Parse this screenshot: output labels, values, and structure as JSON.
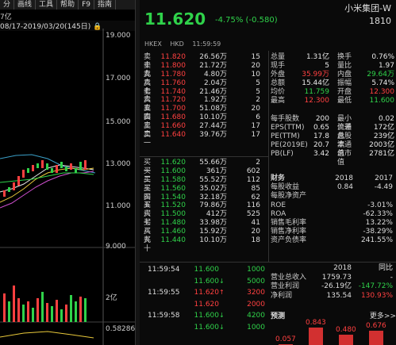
{
  "toolbar": {
    "tabs": [
      "分",
      "画线",
      "工具",
      "帮助",
      "F9",
      "指南"
    ],
    "active": 0
  },
  "chart": {
    "cap_label": "7亿",
    "date_range": "08/17-2019/03/20(145日)",
    "y_labels": [
      "19.000",
      "17.000",
      "15.000",
      "13.000",
      "11.000",
      "9.000"
    ],
    "vol_labels": [
      "2亿"
    ],
    "macd_label": "0.58286"
  },
  "quote": {
    "name": "小米集团-W",
    "code": "1810",
    "price": "11.620",
    "change": "-4.75%  (-0.580)",
    "market": [
      "HKEX",
      "HKD",
      "11:59:59"
    ]
  },
  "asks": [
    {
      "label": "卖十",
      "price": "11.820",
      "vol": "26.56万",
      "cnt": "15"
    },
    {
      "label": "卖九",
      "price": "11.800",
      "vol": "21.72万",
      "cnt": "20"
    },
    {
      "label": "卖八",
      "price": "11.780",
      "vol": "4.80万",
      "cnt": "10"
    },
    {
      "label": "卖七",
      "price": "11.760",
      "vol": "2.04万",
      "cnt": "5"
    },
    {
      "label": "卖六",
      "price": "11.740",
      "vol": "21.46万",
      "cnt": "5"
    },
    {
      "label": "卖五",
      "price": "11.720",
      "vol": "1.92万",
      "cnt": "2"
    },
    {
      "label": "卖四",
      "price": "11.700",
      "vol": "51.08万",
      "cnt": "20"
    },
    {
      "label": "卖三",
      "price": "11.680",
      "vol": "10.10万",
      "cnt": "6"
    },
    {
      "label": "卖二",
      "price": "11.660",
      "vol": "27.44万",
      "cnt": "17"
    },
    {
      "label": "卖一",
      "price": "11.640",
      "vol": "39.76万",
      "cnt": "17"
    }
  ],
  "bids": [
    {
      "label": "买一",
      "price": "11.620",
      "vol": "55.66万",
      "cnt": "2"
    },
    {
      "label": "买二",
      "price": "11.600",
      "vol": "361万",
      "cnt": "602"
    },
    {
      "label": "买三",
      "price": "11.580",
      "vol": "55.52万",
      "cnt": "112"
    },
    {
      "label": "买四",
      "price": "11.560",
      "vol": "35.02万",
      "cnt": "85"
    },
    {
      "label": "买五",
      "price": "11.540",
      "vol": "32.18万",
      "cnt": "62"
    },
    {
      "label": "买六",
      "price": "11.520",
      "vol": "79.86万",
      "cnt": "116"
    },
    {
      "label": "买七",
      "price": "11.500",
      "vol": "412万",
      "cnt": "525"
    },
    {
      "label": "买八",
      "price": "11.480",
      "vol": "33.98万",
      "cnt": "41"
    },
    {
      "label": "买九",
      "price": "11.460",
      "vol": "15.92万",
      "cnt": "20"
    },
    {
      "label": "买十",
      "price": "11.440",
      "vol": "10.10万",
      "cnt": "18"
    }
  ],
  "stats": [
    {
      "k": "总量",
      "v": "1.31亿",
      "vc": "white",
      "k2": "换手",
      "v2": "0.76%",
      "v2c": "white"
    },
    {
      "k": "现手",
      "v": "5",
      "vc": "white",
      "k2": "量比",
      "v2": "1.97",
      "v2c": "white"
    },
    {
      "k": "外盘",
      "v": "35.99万",
      "vc": "red",
      "k2": "内盘",
      "v2": "29.64万",
      "v2c": "green"
    },
    {
      "k": "总额",
      "v": "15.44亿",
      "vc": "white",
      "k2": "振幅",
      "v2": "5.74%",
      "v2c": "white"
    },
    {
      "k": "均价",
      "v": "11.759",
      "vc": "green",
      "k2": "开盘",
      "v2": "12.300",
      "v2c": "red"
    },
    {
      "k": "最高",
      "v": "12.300",
      "vc": "red",
      "k2": "最低",
      "v2": "11.600",
      "v2c": "green"
    }
  ],
  "stats2": [
    {
      "k": "每手股数",
      "v": "200",
      "k2": "最小价差",
      "v2": "0.02"
    },
    {
      "k": "EPS(TTM)",
      "v": "0.65",
      "k2": "流通盘",
      "v2": "172亿"
    },
    {
      "k": "PE(TTM)",
      "v": "17.8",
      "k2": "总股本",
      "v2": "239亿"
    },
    {
      "k": "PE(2019E)",
      "v": "20.7",
      "k2": "流通值",
      "v2": "2003亿"
    },
    {
      "k": "PB(LF)",
      "v": "3.42",
      "k2": "总市值",
      "v2": "2781亿"
    }
  ],
  "finance": {
    "title": "财务",
    "years": [
      "2018",
      "2017"
    ],
    "rows": [
      {
        "k": "每股收益",
        "v": "0.84",
        "v2": "-4.49"
      },
      {
        "k": "每股净资产",
        "v": "",
        "v2": ""
      },
      {
        "k": "ROE",
        "v": "",
        "v2": "-3.01%"
      },
      {
        "k": "ROA",
        "v": "",
        "v2": "-62.33%"
      },
      {
        "k": "销售毛利率",
        "v": "",
        "v2": "13.22%"
      },
      {
        "k": "销售净利率",
        "v": "",
        "v2": "-38.29%"
      },
      {
        "k": "资产负债率",
        "v": "",
        "v2": "241.55%"
      }
    ]
  },
  "ticks": [
    {
      "t": "11:59:54",
      "p": "11.600",
      "a": "",
      "q": "1000",
      "qc": "green"
    },
    {
      "t": "",
      "p": "11.600",
      "a": "↓",
      "q": "5000",
      "qc": "green"
    },
    {
      "t": "11:59:55",
      "p": "11.620",
      "a": "↑",
      "q": "3200",
      "qc": "red"
    },
    {
      "t": "",
      "p": "11.620",
      "a": "",
      "q": "2000",
      "qc": "red"
    },
    {
      "t": "11:59:58",
      "p": "11.600",
      "a": "↓",
      "q": "4200",
      "qc": "green"
    },
    {
      "t": "",
      "p": "11.600",
      "a": "↓",
      "q": "1000",
      "qc": "green"
    }
  ],
  "annual": {
    "year": "2018",
    "yoy": "同比",
    "rows": [
      {
        "k": "营业总收入",
        "v": "1759.73",
        "v2": "-",
        "v2c": "white"
      },
      {
        "k": "营业利润",
        "v": "-26.19亿",
        "v2": "-147.72%",
        "v2c": "green"
      },
      {
        "k": "净利润",
        "v": "135.54",
        "v2": "130.93%",
        "v2c": "red"
      }
    ]
  },
  "forecast": {
    "title": "预测",
    "more": "更多>>",
    "values": [
      "0.057",
      "0.843",
      "0.480",
      "0.676"
    ]
  },
  "colors": {
    "up": "#ff4040",
    "down": "#2fd24a",
    "ma1": "#e8e8e8",
    "ma2": "#e8c83a",
    "ma3": "#d050d0",
    "ma4": "#2fd24a"
  }
}
